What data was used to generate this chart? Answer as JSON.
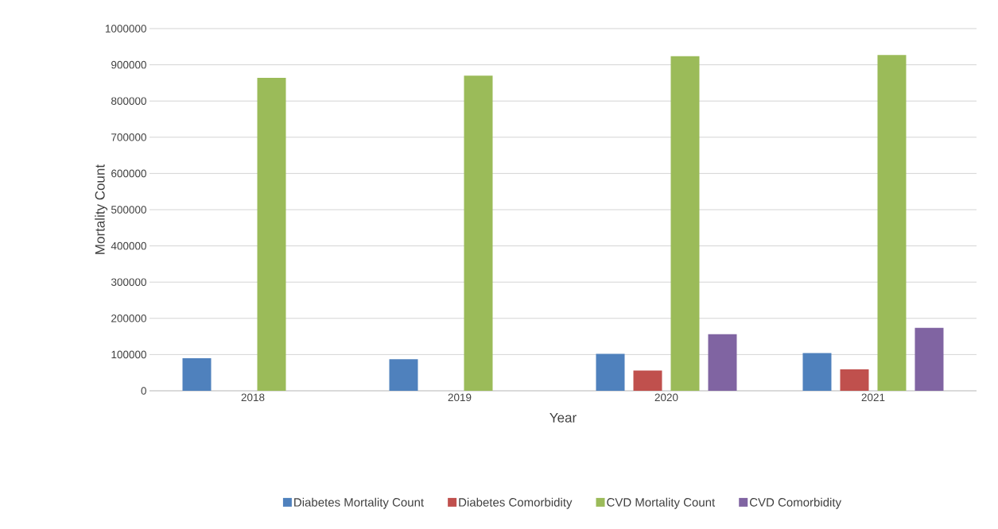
{
  "chart_data": {
    "type": "bar",
    "xlabel": "Year",
    "ylabel": "Mortality Count",
    "categories": [
      "2018",
      "2019",
      "2020",
      "2021"
    ],
    "series": [
      {
        "name": "Diabetes Mortality Count",
        "color": "#4f81bd",
        "values": [
          90000,
          87000,
          102000,
          104000
        ]
      },
      {
        "name": "Diabetes Comorbidity",
        "color": "#c0504d",
        "values": [
          null,
          null,
          56000,
          59000
        ]
      },
      {
        "name": "CVD Mortality Count",
        "color": "#9bbb59",
        "values": [
          864000,
          870000,
          924000,
          927000
        ]
      },
      {
        "name": "CVD Comorbidity",
        "color": "#8064a2",
        "values": [
          null,
          null,
          156000,
          174000
        ]
      }
    ],
    "ylim": [
      0,
      1000000
    ],
    "yticks": [
      0,
      100000,
      200000,
      300000,
      400000,
      500000,
      600000,
      700000,
      800000,
      900000,
      1000000
    ],
    "grid": "y",
    "legend": "bottom"
  }
}
